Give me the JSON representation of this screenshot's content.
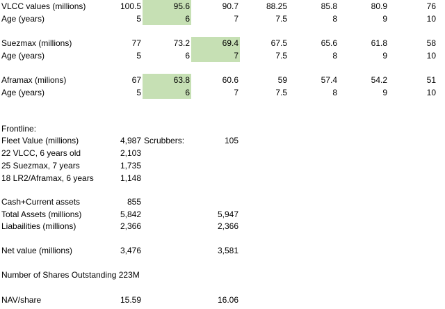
{
  "colors": {
    "highlight": "#c6e0b4",
    "text": "#000000",
    "background": "#ffffff"
  },
  "vlcc": {
    "label_values": "VLCC values (millions)",
    "label_age": "Age (years)",
    "values": [
      "100.5",
      "95.6",
      "90.7",
      "88.25",
      "85.8",
      "80.9",
      "76"
    ],
    "ages": [
      "5",
      "6",
      "7",
      "7.5",
      "8",
      "9",
      "10"
    ],
    "highlight_index": 1
  },
  "suezmax": {
    "label_values": "Suezmax (millions)",
    "label_age": "Age (years)",
    "values": [
      "77",
      "73.2",
      "69.4",
      "67.5",
      "65.6",
      "61.8",
      "58"
    ],
    "ages": [
      "5",
      "6",
      "7",
      "7.5",
      "8",
      "9",
      "10"
    ],
    "highlight_index": 2
  },
  "aframax": {
    "label_values": "Aframax (milions)",
    "label_age": "Age (years)",
    "values": [
      "67",
      "63.8",
      "60.6",
      "59",
      "57.4",
      "54.2",
      "51"
    ],
    "ages": [
      "5",
      "6",
      "7",
      "7.5",
      "8",
      "9",
      "10"
    ],
    "highlight_index": 1
  },
  "frontline": {
    "header": "Frontline:",
    "fleet_value_label": "Fleet Value (millions)",
    "fleet_value": "4,987",
    "scrubbers_label": "Scrubbers:",
    "scrubbers_value": "105",
    "vlcc_label": "22 VLCC, 6 years old",
    "vlcc_value": "2,103",
    "suezmax_label": "25 Suezmax, 7 years",
    "suezmax_value": "1,735",
    "lr2_label": "18 LR2/Aframax, 6 years",
    "lr2_value": "1,148",
    "cash_label": "Cash+Current assets",
    "cash_value": "855",
    "total_assets_label": "Total Assets (millions)",
    "total_assets_value": "5,842",
    "total_assets_alt": "5,947",
    "liabilities_label": "Liabailities (millions)",
    "liabilities_value": "2,366",
    "liabilities_alt": "2,366",
    "net_value_label": "Net value (millions)",
    "net_value": "3,476",
    "net_value_alt": "3,581",
    "shares_label": "Number of Shares Outstanding 223M",
    "nav_label": "NAV/share",
    "nav_value": "15.59",
    "nav_alt": "16.06"
  }
}
